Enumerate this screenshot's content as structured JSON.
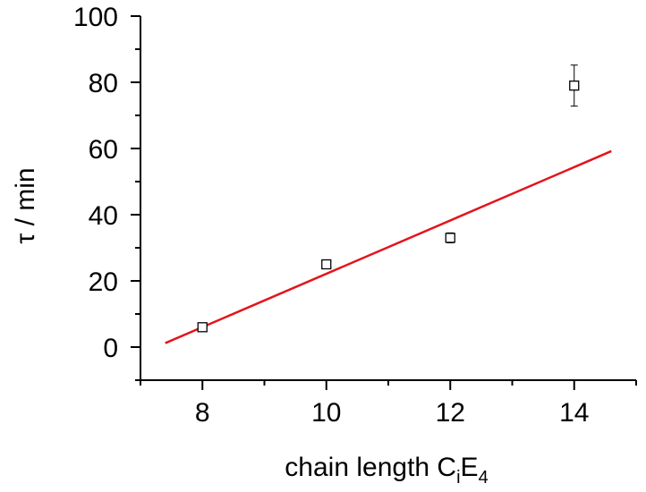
{
  "chart_data": {
    "type": "scatter",
    "xlabel": {
      "prefix": "chain length C",
      "sub1": "i",
      "mid": "E",
      "sub2": "4"
    },
    "ylabel": "τ / min",
    "xlim": [
      7,
      15
    ],
    "ylim": [
      -10,
      100
    ],
    "x_ticks": [
      8,
      10,
      12,
      14
    ],
    "y_ticks": [
      0,
      20,
      40,
      60,
      80,
      100
    ],
    "x_minor_ticks": [
      7,
      9,
      11,
      13,
      15
    ],
    "y_minor_ticks": [
      -10,
      10,
      30,
      50,
      70,
      90
    ],
    "series": [
      {
        "marker": "square",
        "points": [
          {
            "x": 8,
            "y": 6,
            "err": 0.5
          },
          {
            "x": 10,
            "y": 25,
            "err": 0.5
          },
          {
            "x": 12,
            "y": 33,
            "err": 1.5
          },
          {
            "x": 14,
            "y": 79,
            "err": 6.2
          }
        ]
      }
    ],
    "fit_line": {
      "color": "#e3141b",
      "x": [
        7.4,
        14.6
      ],
      "y": [
        1.2,
        59.2
      ]
    },
    "grid": false
  }
}
